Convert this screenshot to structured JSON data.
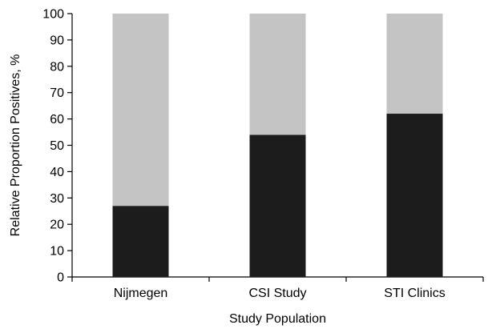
{
  "chart_data": {
    "type": "bar",
    "stacked": true,
    "categories": [
      "Nijmegen",
      "CSI Study",
      "STI Clinics"
    ],
    "series": [
      {
        "values": [
          27,
          54,
          62
        ],
        "color": "#1c1c1c"
      },
      {
        "values": [
          73,
          46,
          38
        ],
        "color": "#c4c4c4"
      }
    ],
    "xlabel": "Study Population",
    "ylabel": "Relative Proportion Positives, %",
    "ylim": [
      0,
      100
    ],
    "yticks": [
      0,
      10,
      20,
      30,
      40,
      50,
      60,
      70,
      80,
      90,
      100
    ],
    "grid": false,
    "legend": "none"
  }
}
